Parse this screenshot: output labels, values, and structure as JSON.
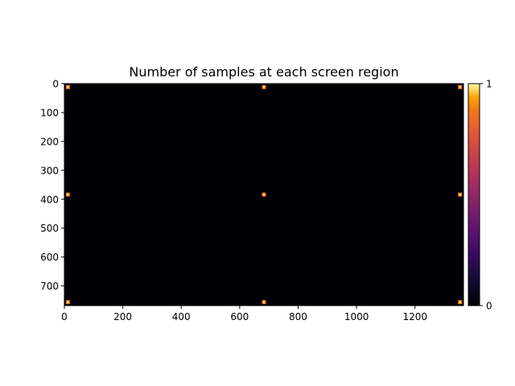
{
  "chart_data": {
    "type": "heatmap",
    "title": "Number of samples at each screen region",
    "xlabel": "",
    "ylabel": "",
    "xlim": [
      0,
      1366
    ],
    "ylim": [
      768,
      0
    ],
    "x_ticks": [
      0,
      200,
      400,
      600,
      800,
      1000,
      1200
    ],
    "y_ticks": [
      0,
      100,
      200,
      300,
      400,
      500,
      600,
      700
    ],
    "grid": false,
    "colormap": "inferno",
    "colorbar": {
      "min": 0,
      "max": 1,
      "ticks": [
        0,
        1
      ]
    },
    "background_value": 0,
    "points": [
      {
        "x": 12,
        "y": 12,
        "value": 1
      },
      {
        "x": 683,
        "y": 12,
        "value": 1
      },
      {
        "x": 1354,
        "y": 12,
        "value": 1
      },
      {
        "x": 12,
        "y": 384,
        "value": 1
      },
      {
        "x": 683,
        "y": 384,
        "value": 1
      },
      {
        "x": 1354,
        "y": 384,
        "value": 1
      },
      {
        "x": 12,
        "y": 756,
        "value": 1
      },
      {
        "x": 683,
        "y": 756,
        "value": 1
      },
      {
        "x": 1354,
        "y": 756,
        "value": 1
      }
    ]
  }
}
